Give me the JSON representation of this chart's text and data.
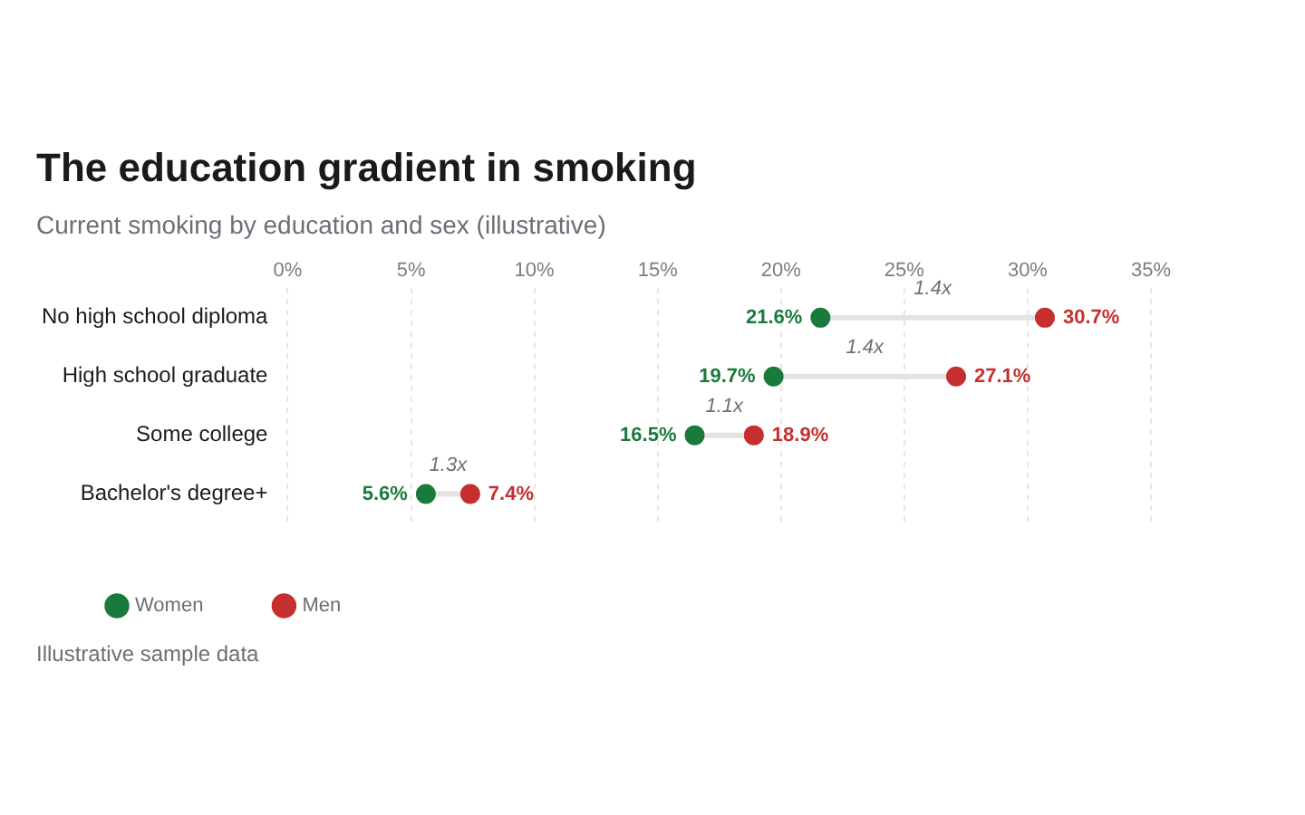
{
  "chart_data": {
    "type": "scatter",
    "orientation": "horizontal",
    "title": "The education gradient in smoking",
    "subtitle": "Current smoking by education and sex (illustrative)",
    "categories": [
      "No high school diploma",
      "High school graduate",
      "Some college",
      "Bachelor's degree+"
    ],
    "series": [
      {
        "name": "Women",
        "color": "#1a7a3c",
        "values": [
          21.6,
          19.7,
          16.5,
          5.6
        ],
        "value_labels": [
          "21.6%",
          "19.7%",
          "16.5%",
          "5.6%"
        ]
      },
      {
        "name": "Men",
        "color": "#c62f2f",
        "values": [
          30.7,
          27.1,
          18.9,
          7.4
        ],
        "value_labels": [
          "30.7%",
          "27.1%",
          "18.9%",
          "7.4%"
        ]
      }
    ],
    "xlim": [
      0,
      35
    ],
    "xticks": [
      {
        "value": 0,
        "label": "0%"
      },
      {
        "value": 5,
        "label": "5%"
      },
      {
        "value": 10,
        "label": "10%"
      },
      {
        "value": 15,
        "label": "15%"
      },
      {
        "value": 20,
        "label": "20%"
      },
      {
        "value": 25,
        "label": "25%"
      },
      {
        "value": 30,
        "label": "30%"
      },
      {
        "value": 35,
        "label": "35%"
      }
    ],
    "annotations": [
      "1.4x",
      "1.4x",
      "1.1x",
      "1.3x",
      "Illustrative sample data"
    ],
    "grid": "x",
    "legend": "bottom left",
    "marker": "circle"
  }
}
